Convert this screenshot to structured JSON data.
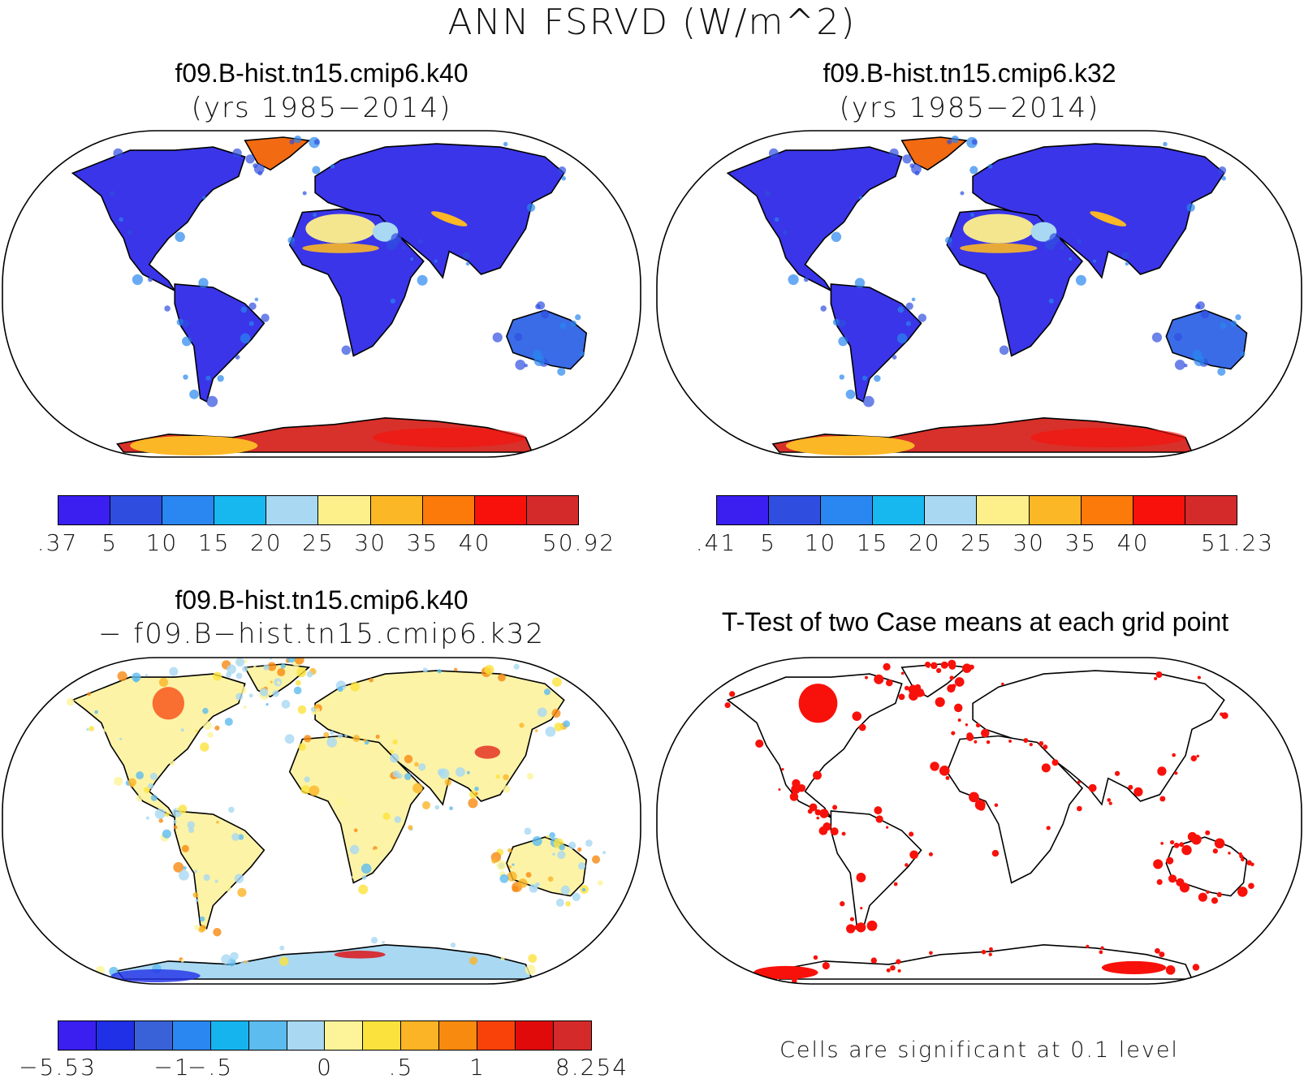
{
  "figure": {
    "title": "ANN FSRVD (W/m^2)"
  },
  "panels": [
    {
      "id": "case1",
      "title": "f09.B-hist.tn15.cmip6.k40",
      "subtitle": "(yrs 1985−2014)"
    },
    {
      "id": "case2",
      "title": "f09.B-hist.tn15.cmip6.k32",
      "subtitle": "(yrs 1985−2014)"
    },
    {
      "id": "diff",
      "title": "f09.B-hist.tn15.cmip6.k40",
      "subtitle": "− f09.B−hist.tn15.cmip6.k32"
    },
    {
      "id": "ttest",
      "title": "T-Test of two Case means at each grid point",
      "note": "Cells are significant at 0.1 level"
    }
  ],
  "colorbars": {
    "case1": {
      "colors": [
        "#3a1ff0",
        "#2f4ee0",
        "#2a86f0",
        "#17b8f0",
        "#a8d8f2",
        "#fdf08a",
        "#fbb725",
        "#fb7a0a",
        "#f8110a",
        "#d42a2a"
      ],
      "labels": [
        ".37",
        "5",
        "10",
        "15",
        "20",
        "25",
        "30",
        "35",
        "40",
        "50.92"
      ]
    },
    "case2": {
      "colors": [
        "#3a1ff0",
        "#2f4ee0",
        "#2a86f0",
        "#17b8f0",
        "#a8d8f2",
        "#fdf08a",
        "#fbb725",
        "#fb7a0a",
        "#f8110a",
        "#d42a2a"
      ],
      "labels": [
        ".41",
        "5",
        "10",
        "15",
        "20",
        "25",
        "30",
        "35",
        "40",
        "51.23"
      ]
    },
    "diff": {
      "colors": [
        "#3a1ff0",
        "#2030e6",
        "#3a62d8",
        "#2a86f0",
        "#15b4ee",
        "#5cbcef",
        "#a8d8f2",
        "#fdf49a",
        "#fce23c",
        "#fbb425",
        "#f88a10",
        "#f8420a",
        "#e00a0a",
        "#d42a2a"
      ],
      "labels": [
        "−5.53",
        "−1",
        "−.5",
        "0",
        ".5",
        "1",
        "8.254"
      ]
    }
  }
}
